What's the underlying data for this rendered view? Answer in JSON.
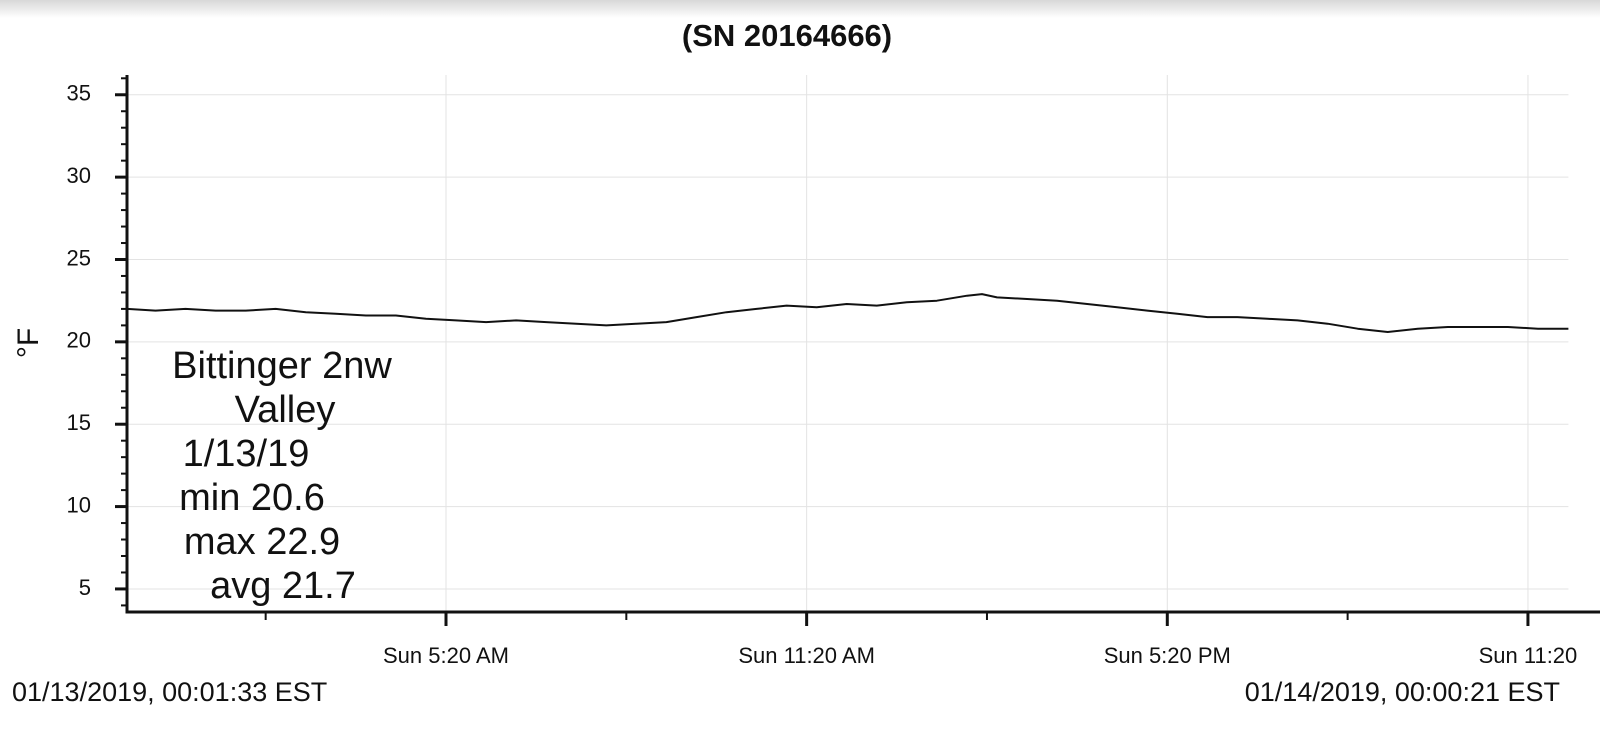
{
  "chart_data": {
    "type": "line",
    "title": "(SN 20164666)",
    "ylabel": "°F",
    "annotation": [
      "Bittinger 2nw",
      "Valley",
      "1/13/19",
      "min 20.6",
      "max 22.9",
      "avg 21.7"
    ],
    "start_label": "01/13/2019, 00:01:33 EST",
    "end_label": "01/14/2019, 00:00:21 EST",
    "xlim": [
      0.026,
      24.006
    ],
    "xticks": [
      {
        "value": 5.333,
        "label": "Sun 5:20 AM"
      },
      {
        "value": 11.333,
        "label": "Sun 11:20 AM"
      },
      {
        "value": 17.333,
        "label": "Sun 5:20 PM"
      },
      {
        "value": 23.333,
        "label": "Sun 11:20"
      }
    ],
    "ylim": [
      3.6,
      36.2
    ],
    "yticks": [
      5,
      10,
      15,
      20,
      25,
      30,
      35
    ],
    "grid": true,
    "color": "#111111",
    "x": [
      0.026,
      0.5,
      1,
      1.5,
      2,
      2.5,
      3,
      3.5,
      4,
      4.5,
      5,
      5.5,
      6,
      6.5,
      7,
      7.5,
      8,
      8.5,
      9,
      9.5,
      10,
      10.5,
      11,
      11.5,
      12,
      12.5,
      13,
      13.5,
      14,
      14.25,
      14.5,
      15,
      15.5,
      16,
      16.5,
      17,
      17.5,
      18,
      18.5,
      19,
      19.5,
      20,
      20.5,
      21,
      21.5,
      22,
      22.5,
      23,
      23.5,
      24.006
    ],
    "values": [
      22.0,
      21.9,
      22.0,
      21.9,
      21.9,
      22.0,
      21.8,
      21.7,
      21.6,
      21.6,
      21.4,
      21.3,
      21.2,
      21.3,
      21.2,
      21.1,
      21.0,
      21.1,
      21.2,
      21.5,
      21.8,
      22.0,
      22.2,
      22.1,
      22.3,
      22.2,
      22.4,
      22.5,
      22.8,
      22.9,
      22.7,
      22.6,
      22.5,
      22.3,
      22.1,
      21.9,
      21.7,
      21.5,
      21.5,
      21.4,
      21.3,
      21.1,
      20.8,
      20.6,
      20.8,
      20.9,
      20.9,
      20.9,
      20.8,
      20.8
    ]
  }
}
